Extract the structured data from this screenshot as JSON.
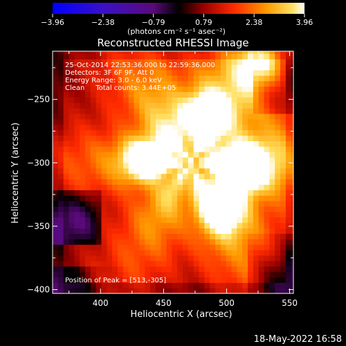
{
  "colorbar": {
    "tick_labels": [
      "-3.96",
      "-2.38",
      "-0.79",
      "0.79",
      "2.38",
      "3.96"
    ],
    "unit_label": "(photons cm⁻² s⁻¹ asec⁻²)"
  },
  "info": {
    "time_range": "25-Oct-2014 22:53:36.000 to 22:59:36.000",
    "detectors": "Detectors: 3F 6F 9F, Att 0",
    "energy_range": "Energy Range: 3.0 - 6.0 keV",
    "method_counts": "Clean     Total counts: 3.44E+05",
    "peak_position": "Position of Peak = [513,-305]"
  },
  "footer": {
    "date": "18-May-2022 16:58"
  },
  "chart_data": {
    "type": "heatmap",
    "title": "Reconstructed RHESSI Image",
    "xlabel": "Heliocentric X (arcsec)",
    "ylabel": "Heliocentric Y (arcsec)",
    "xlim": [
      362,
      553
    ],
    "ylim": [
      -403,
      -212
    ],
    "xticks": [
      400,
      450,
      500,
      550
    ],
    "yticks": [
      -250,
      -300,
      -350,
      -400
    ],
    "colorbar_range": [
      -3.96,
      3.96
    ],
    "peak": [
      513,
      -305
    ],
    "sources": [
      {
        "x": 437,
        "y": -296,
        "value": 3.7
      },
      {
        "x": 514,
        "y": -304,
        "value": 3.96
      },
      {
        "x": 480,
        "y": -262,
        "value": 3.3
      },
      {
        "x": 497,
        "y": -336,
        "value": 3.3
      },
      {
        "x": 530,
        "y": -222,
        "value": 3.4
      }
    ]
  }
}
